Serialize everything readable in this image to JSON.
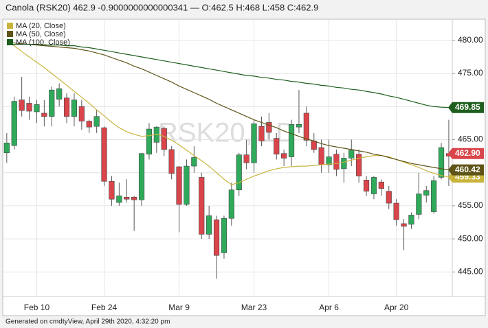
{
  "chart_data": {
    "type": "candlestick",
    "title": "Canola (RSK20) 462.9 -0.9000000000000341 — O:462.5 H:468 L:458 C:462.9",
    "watermark": "RSK20, 1D",
    "footer": "Generated on cmdtyView, April 29th 2020, 4:32:20 pm",
    "categories": [
      null,
      null,
      null,
      null,
      "Feb 10",
      null,
      null,
      null,
      null,
      null,
      null,
      null,
      null,
      "Feb 24",
      null,
      null,
      null,
      null,
      null,
      null,
      null,
      null,
      null,
      "Mar 9",
      null,
      null,
      null,
      null,
      null,
      null,
      null,
      null,
      null,
      "Mar 23",
      null,
      null,
      null,
      null,
      null,
      null,
      null,
      null,
      null,
      "Apr 6",
      null,
      null,
      null,
      null,
      null,
      null,
      null,
      null,
      "Apr 20",
      null,
      null,
      null,
      null,
      null,
      null,
      null
    ],
    "open": [
      463,
      464.1,
      471,
      470.5,
      469.2,
      469,
      468.5,
      471.1,
      471.3,
      471,
      470,
      467.8,
      467,
      466.8,
      458.7,
      455.5,
      456.3,
      456.3,
      455.9,
      462.8,
      464.6,
      466.7,
      463.5,
      460.9,
      455.2,
      461,
      459.3,
      450.7,
      452.9,
      447.9,
      453.1,
      457.4,
      462.7,
      461.5,
      464.8,
      467.6,
      465.2,
      462.9,
      462.4,
      466.9,
      469,
      464.8,
      463.8,
      461.2,
      462.8,
      460.6,
      462.2,
      462.8,
      458.9,
      456.8,
      458.6,
      457.2,
      455.4,
      452.3,
      452.2,
      453.7,
      456.6,
      454.1,
      459.3,
      462.5
    ],
    "high": [
      466,
      471.5,
      474.5,
      471.5,
      471,
      471,
      473,
      473.5,
      472,
      472,
      471,
      468,
      469.5,
      467,
      459.5,
      458.5,
      459,
      456.5,
      463,
      467.5,
      467,
      467,
      464,
      461,
      462,
      464,
      460,
      455,
      453.5,
      453.5,
      458.5,
      463,
      465,
      468,
      468.5,
      469,
      466,
      463.5,
      468,
      472.5,
      470,
      466,
      465,
      465,
      463.5,
      463,
      465,
      463.5,
      459.5,
      459.5,
      459,
      458,
      456,
      453,
      454,
      460,
      458,
      459.5,
      464.5,
      468
    ],
    "low": [
      461.5,
      463.5,
      468.5,
      468,
      467.5,
      467,
      467,
      470,
      467.5,
      467,
      466.5,
      466,
      466,
      458,
      455,
      455,
      455.5,
      451.2,
      455,
      462,
      463,
      462.5,
      459,
      451,
      455,
      460,
      450,
      450,
      444,
      447,
      452,
      456.5,
      460.5,
      460,
      464,
      465,
      462,
      461,
      461,
      466,
      464,
      463,
      460,
      460,
      459.5,
      458.5,
      461,
      458.5,
      456.5,
      456,
      456.5,
      454.5,
      452,
      448.3,
      451.5,
      453,
      455.5,
      453.8,
      459,
      458
    ],
    "close": [
      464.5,
      470.8,
      469.4,
      469.3,
      470.3,
      468.5,
      472.5,
      472.7,
      468.5,
      468.5,
      467.8,
      466.9,
      468.5,
      458.7,
      456,
      456.5,
      456,
      455.9,
      462.9,
      466.6,
      466.9,
      463.5,
      459.9,
      455.2,
      461,
      462.3,
      450.7,
      453.5,
      447.5,
      453.1,
      457.4,
      462.7,
      461.5,
      467.4,
      467,
      466.1,
      462.8,
      462.2,
      467.3,
      467.3,
      464.9,
      463.5,
      461.2,
      462.4,
      460.5,
      462.2,
      463.4,
      459.5,
      457.2,
      459.3,
      457.6,
      455.4,
      452.9,
      451.9,
      453.6,
      456.8,
      457.3,
      458.8,
      463.8,
      462.9
    ],
    "up_color": "#2eaa5a",
    "down_color": "#d9454a",
    "last_label": "462.90",
    "series": [
      {
        "name": "MA (20, Close)",
        "color": "#c8b43c",
        "last_label": "459.33",
        "values": [
          479.8,
          479.2,
          478.3,
          477.5,
          476.7,
          475.9,
          475.0,
          474.1,
          473.2,
          472.3,
          471.4,
          470.5,
          469.5,
          468.6,
          467.6,
          466.8,
          466.2,
          465.8,
          465.5,
          465.6,
          465.8,
          465.5,
          464.9,
          464.2,
          463.4,
          462.6,
          461.8,
          461.0,
          460.0,
          459.0,
          458.2,
          458.5,
          459.0,
          459.5,
          459.9,
          460.3,
          460.6,
          460.8,
          460.9,
          461.0,
          461.0,
          461.1,
          461.2,
          461.3,
          461.4,
          461.6,
          461.9,
          462.2,
          462.4,
          462.6,
          462.6,
          462.4,
          462.0,
          461.6,
          461.2,
          460.8,
          460.3,
          459.9,
          459.6,
          459.33
        ]
      },
      {
        "name": "MA (50, Close)",
        "color": "#5e5417",
        "last_label": "460.42",
        "values": [
          479.7,
          479.6,
          479.5,
          479.4,
          479.3,
          479.2,
          479.1,
          479.0,
          478.9,
          478.8,
          478.6,
          478.4,
          478.1,
          477.8,
          477.4,
          477.0,
          476.6,
          476.1,
          475.7,
          475.2,
          474.7,
          474.2,
          473.7,
          473.1,
          472.6,
          472.1,
          471.6,
          471.1,
          470.5,
          470.0,
          469.5,
          469.0,
          468.5,
          468.0,
          467.6,
          467.2,
          466.8,
          466.3,
          465.9,
          465.5,
          465.1,
          464.8,
          464.4,
          464.1,
          463.9,
          463.7,
          463.5,
          463.3,
          463.1,
          462.8,
          462.6,
          462.3,
          462.0,
          461.7,
          461.4,
          461.2,
          461.0,
          460.8,
          460.6,
          460.42
        ]
      },
      {
        "name": "MA (100, Close)",
        "color": "#1e5e1e",
        "last_label": "469.85",
        "values": [
          479.4,
          479.4,
          479.4,
          479.4,
          479.4,
          479.3,
          479.3,
          479.3,
          479.2,
          479.2,
          479.0,
          478.9,
          478.7,
          478.5,
          478.3,
          478.1,
          477.9,
          477.7,
          477.5,
          477.3,
          477.1,
          476.9,
          476.7,
          476.5,
          476.3,
          476.1,
          475.9,
          475.7,
          475.5,
          475.3,
          475.1,
          474.9,
          474.7,
          474.6,
          474.4,
          474.3,
          474.1,
          474.0,
          473.8,
          473.7,
          473.5,
          473.4,
          473.2,
          473.1,
          472.9,
          472.8,
          472.6,
          472.5,
          472.3,
          472.1,
          471.9,
          471.6,
          471.4,
          471.1,
          470.8,
          470.5,
          470.2,
          470.0,
          469.9,
          469.85
        ]
      }
    ],
    "ylim": [
      441.3,
      483.2
    ],
    "yticks": [
      {
        "value": 445,
        "label": "445.00"
      },
      {
        "value": 450,
        "label": "450.00"
      },
      {
        "value": 455,
        "label": "455.00"
      },
      {
        "value": 460,
        "label": "460.00"
      },
      {
        "value": 465,
        "label": "465.00"
      },
      {
        "value": 470,
        "label": "470.00"
      },
      {
        "value": 475,
        "label": "475.00"
      },
      {
        "value": 480,
        "label": "480.00"
      }
    ],
    "grid": true
  }
}
